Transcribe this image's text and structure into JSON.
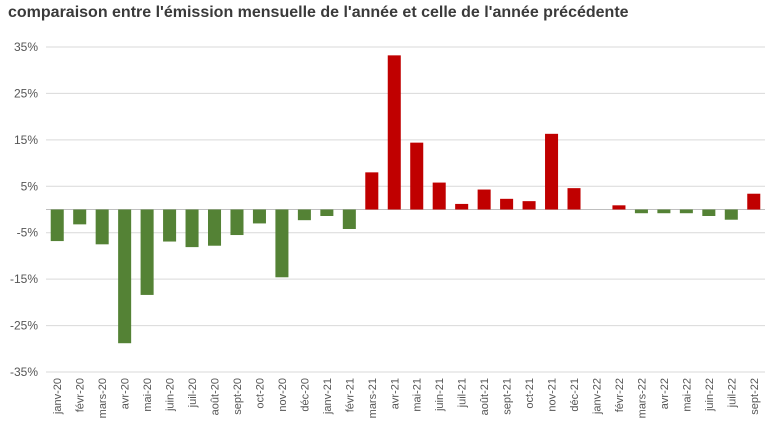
{
  "chart_data": {
    "type": "bar",
    "title": "comparaison entre l'émission mensuelle de l'année et celle de l'année précédente",
    "xlabel": "",
    "ylabel": "",
    "ylim": [
      -35,
      35
    ],
    "yticks": [
      "35%",
      "25%",
      "15%",
      "5%",
      "-5%",
      "-15%",
      "-25%",
      "-35%"
    ],
    "ytick_values": [
      35,
      25,
      15,
      5,
      -5,
      -15,
      -25,
      -35
    ],
    "grid": true,
    "legend": "none",
    "colors": {
      "positive": "#c00000",
      "negative": "#548235"
    },
    "categories": [
      "janv-20",
      "févr-20",
      "mars-20",
      "avr-20",
      "mai-20",
      "juin-20",
      "juil-20",
      "août-20",
      "sept-20",
      "oct-20",
      "nov-20",
      "déc-20",
      "janv-21",
      "févr-21",
      "mars-21",
      "avr-21",
      "mai-21",
      "juin-21",
      "juil-21",
      "août-21",
      "sept-21",
      "oct-21",
      "nov-21",
      "déc-21",
      "janv-22",
      "févr-22",
      "mars-22",
      "avr-22",
      "mai-22",
      "juin-22",
      "juil-22",
      "sept-22"
    ],
    "values": [
      -6.8,
      -3.2,
      -7.5,
      -28.8,
      -18.4,
      -6.9,
      -8.1,
      -7.8,
      -5.5,
      -3.0,
      -14.6,
      -2.3,
      -1.4,
      -4.2,
      8.0,
      33.2,
      14.4,
      5.8,
      1.2,
      4.3,
      2.3,
      1.8,
      16.3,
      4.6,
      0.0,
      0.9,
      -0.8,
      -0.8,
      -0.8,
      -1.4,
      -2.2,
      3.4
    ]
  }
}
